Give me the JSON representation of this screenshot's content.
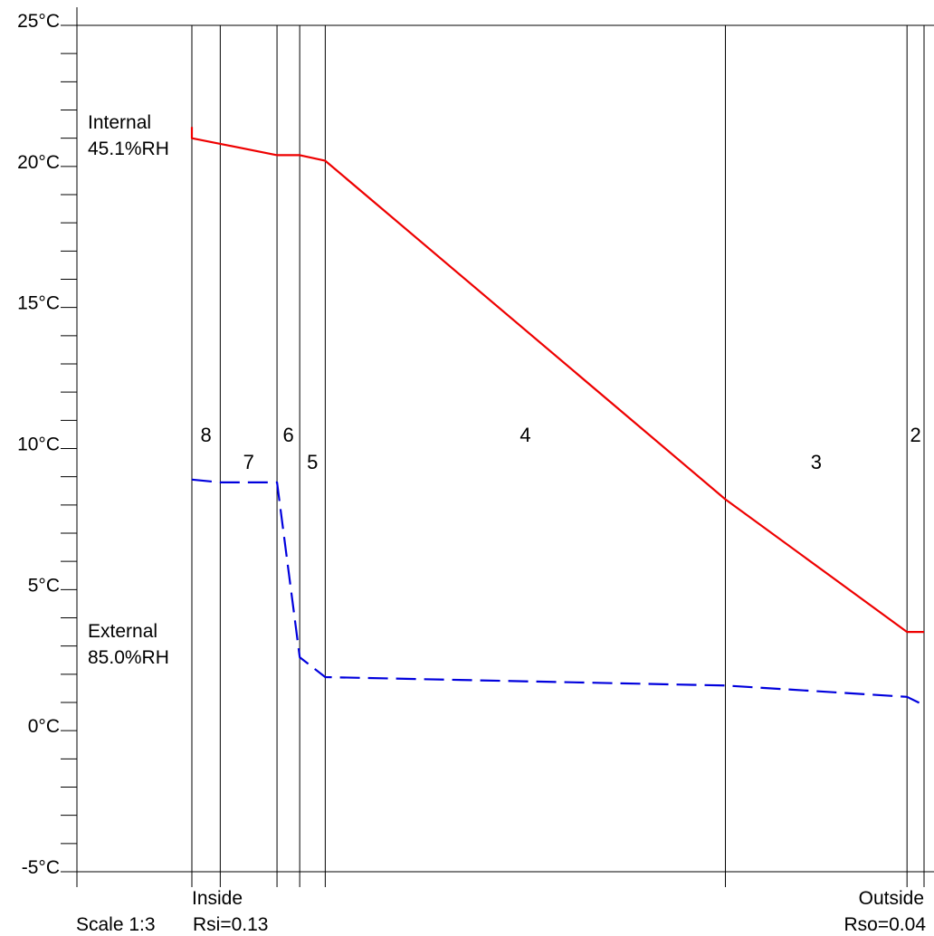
{
  "chart_data": {
    "type": "line",
    "y_unit": "°C",
    "ylim": [
      -5,
      25
    ],
    "y_ticks": [
      "25°C",
      "20°C",
      "15°C",
      "10°C",
      "5°C",
      "0°C",
      "-5°C"
    ],
    "y_tick_values": [
      25,
      20,
      15,
      10,
      5,
      0,
      -5
    ],
    "grid": false,
    "layers": [
      "8",
      "7",
      "6",
      "5",
      "4",
      "3",
      "2"
    ],
    "layer_boundaries_mm": [
      0,
      10,
      30,
      38,
      47,
      188,
      252,
      258
    ],
    "series": [
      {
        "id": "temperature",
        "color": "#ee0000",
        "dash": false,
        "x_mm": [
          0,
          0,
          10,
          30,
          38,
          47,
          188,
          252,
          258
        ],
        "values": [
          21.4,
          21.0,
          20.8,
          20.4,
          20.4,
          20.2,
          8.2,
          3.5,
          3.5
        ]
      },
      {
        "id": "dewpoint",
        "color": "#0000dd",
        "dash": true,
        "x_mm": [
          0,
          10,
          30,
          38,
          47,
          188,
          252,
          258
        ],
        "values": [
          8.9,
          8.8,
          8.8,
          2.6,
          1.9,
          1.6,
          1.2,
          0.9
        ]
      }
    ],
    "annotations": {
      "internal_label": "Internal",
      "internal_rh": "45.1%RH",
      "external_label": "External",
      "external_rh": "85.0%RH",
      "scale": "Scale 1:3",
      "inside_label": "Inside",
      "outside_label": "Outside",
      "rsi": "Rsi=0.13",
      "rso": "Rso=0.04"
    }
  }
}
